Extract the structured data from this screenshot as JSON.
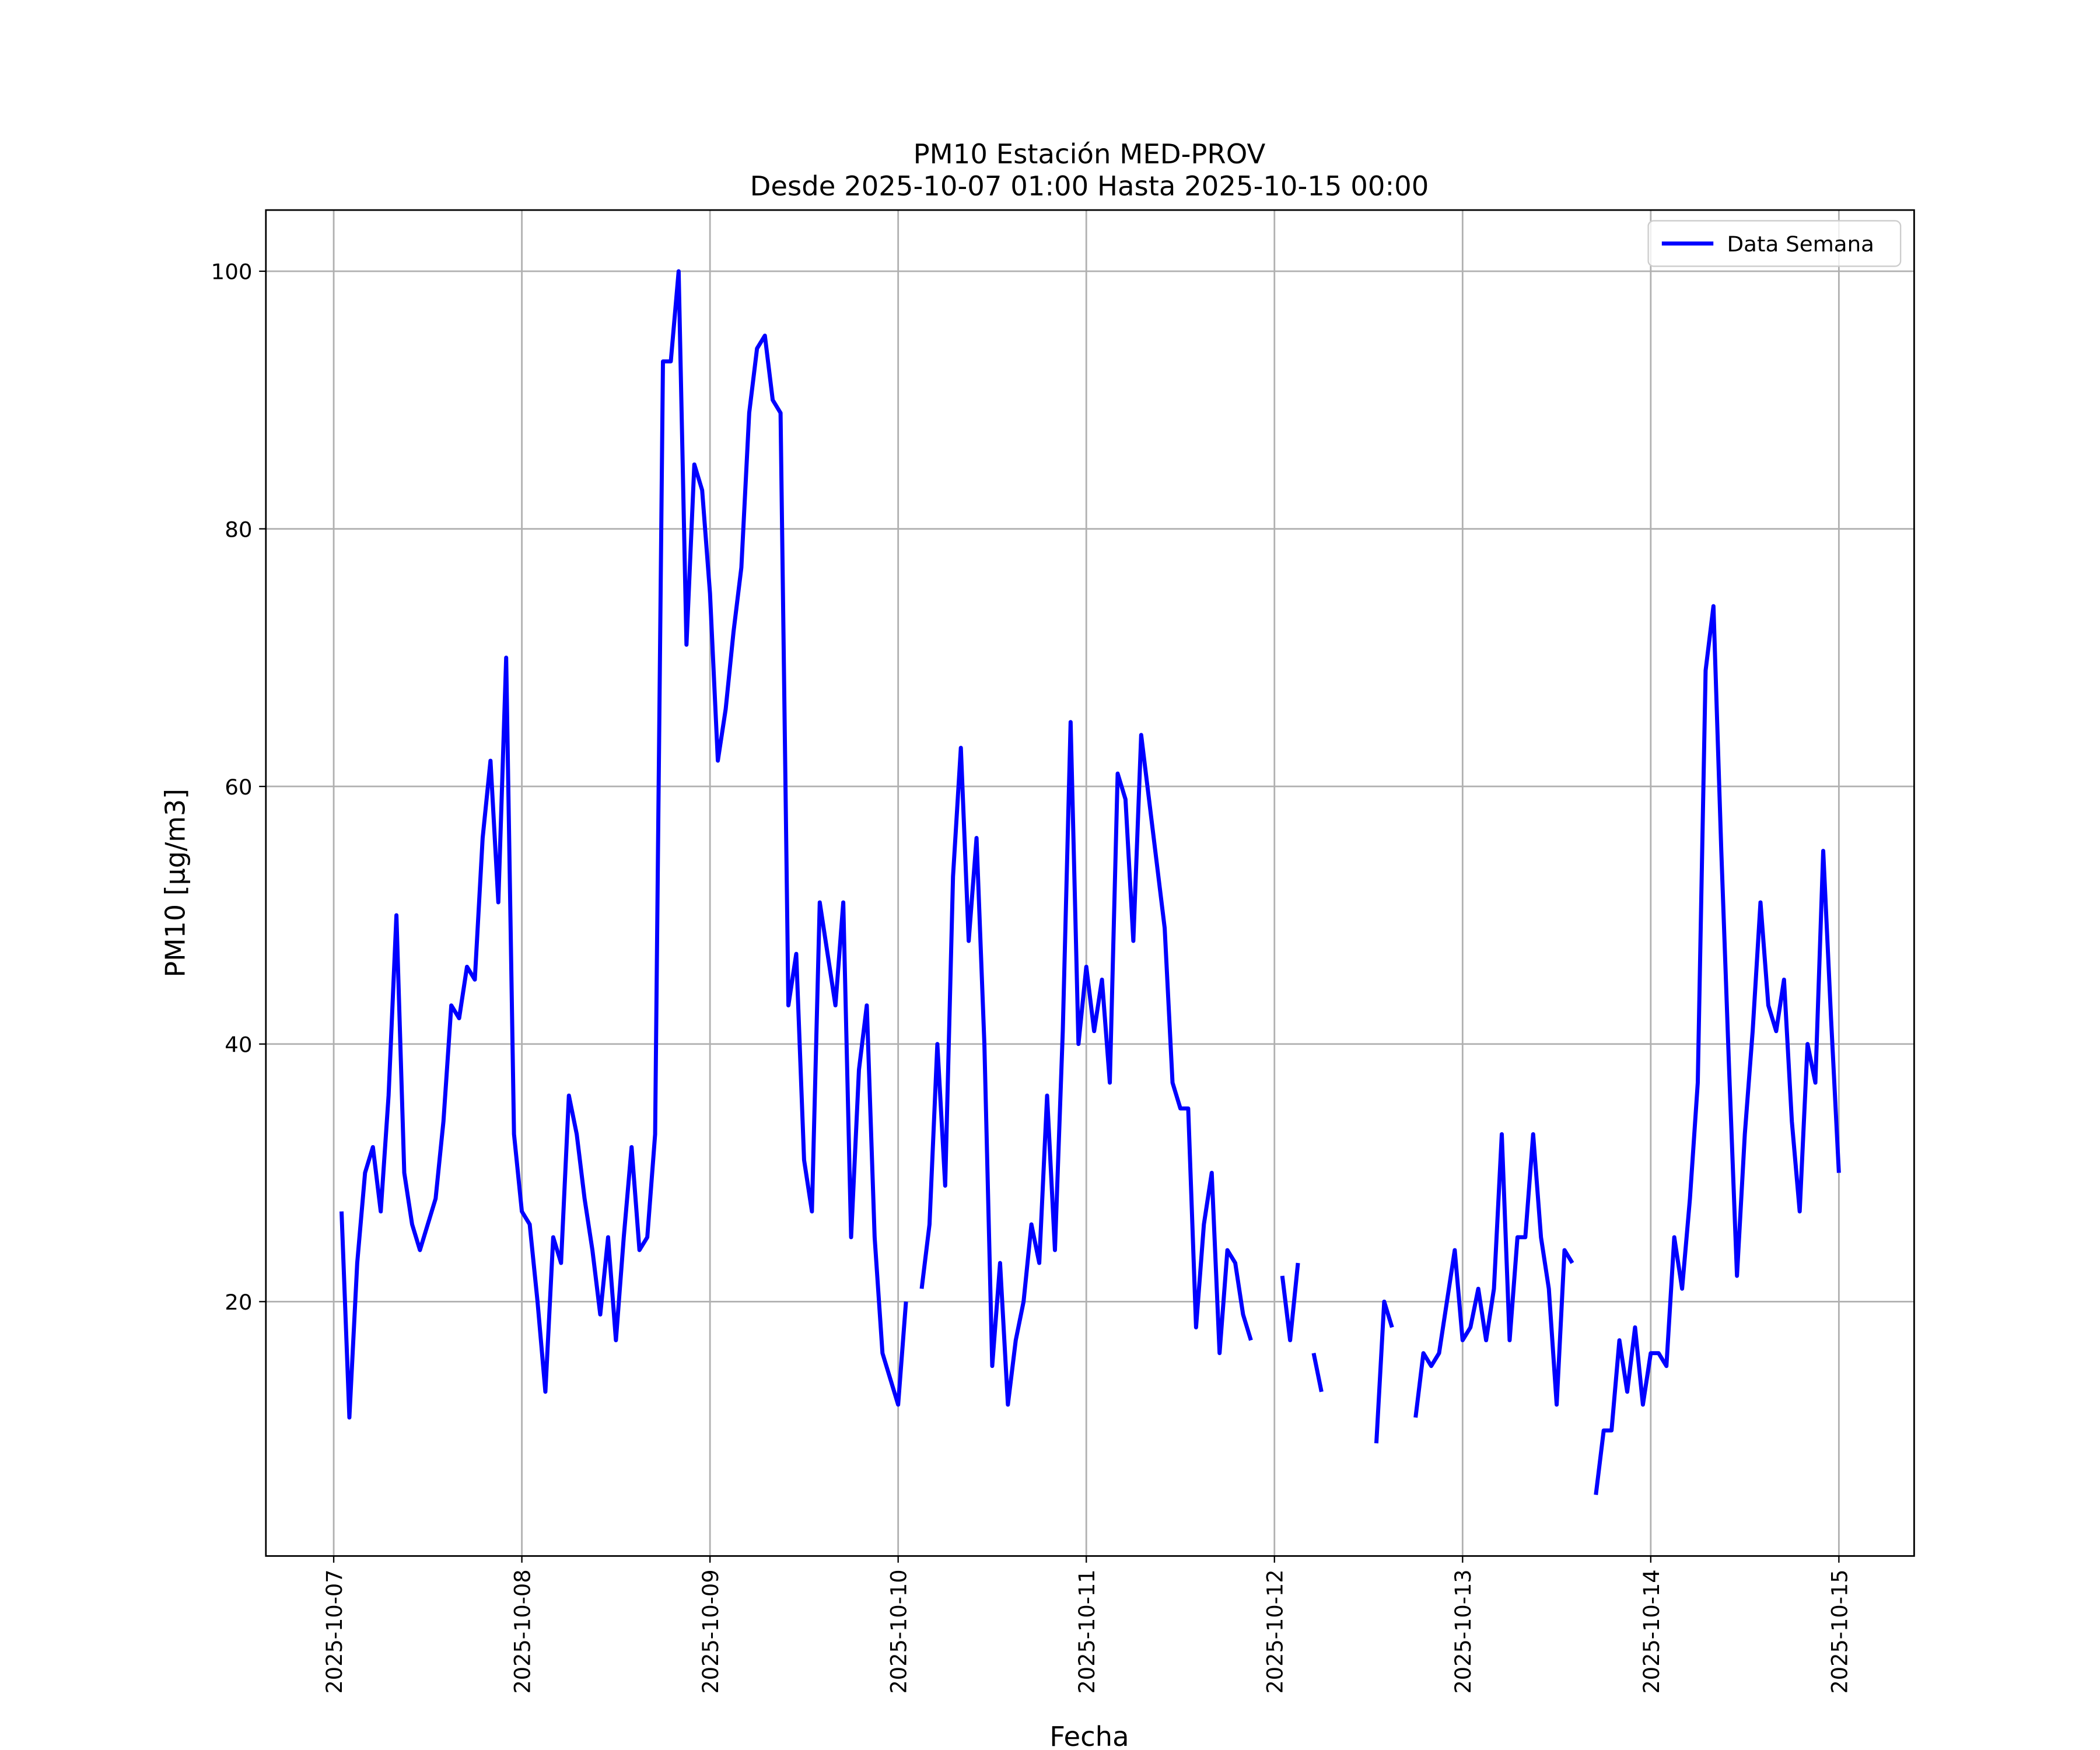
{
  "chart_data": {
    "type": "line",
    "title": "PM10 Estación MED-PROV",
    "subtitle": "Desde 2025-10-07 01:00 Hasta 2025-10-15 00:00",
    "x_label": "Fecha",
    "y_label": "PM10 [μg/m3]",
    "grid": true,
    "legend": "upper right",
    "xlim": [
      "2025-10-06 15:21",
      "2025-10-15 09:36"
    ],
    "ylim": [
      0.25,
      104.75
    ],
    "yticks": [
      20,
      40,
      60,
      80,
      100
    ],
    "xticks": [
      "2025-10-07",
      "2025-10-08",
      "2025-10-09",
      "2025-10-10",
      "2025-10-11",
      "2025-10-12",
      "2025-10-13",
      "2025-10-14",
      "2025-10-15"
    ],
    "x": [
      "2025-10-07 01:00",
      "2025-10-07 02:00",
      "2025-10-07 03:00",
      "2025-10-07 04:00",
      "2025-10-07 05:00",
      "2025-10-07 06:00",
      "2025-10-07 07:00",
      "2025-10-07 08:00",
      "2025-10-07 09:00",
      "2025-10-07 10:00",
      "2025-10-07 11:00",
      "2025-10-07 12:00",
      "2025-10-07 13:00",
      "2025-10-07 14:00",
      "2025-10-07 15:00",
      "2025-10-07 16:00",
      "2025-10-07 17:00",
      "2025-10-07 18:00",
      "2025-10-07 19:00",
      "2025-10-07 20:00",
      "2025-10-07 21:00",
      "2025-10-07 22:00",
      "2025-10-07 23:00",
      "2025-10-08 00:00",
      "2025-10-08 01:00",
      "2025-10-08 02:00",
      "2025-10-08 03:00",
      "2025-10-08 04:00",
      "2025-10-08 05:00",
      "2025-10-08 06:00",
      "2025-10-08 07:00",
      "2025-10-08 08:00",
      "2025-10-08 09:00",
      "2025-10-08 10:00",
      "2025-10-08 11:00",
      "2025-10-08 12:00",
      "2025-10-08 13:00",
      "2025-10-08 14:00",
      "2025-10-08 15:00",
      "2025-10-08 16:00",
      "2025-10-08 17:00",
      "2025-10-08 18:00",
      "2025-10-08 19:00",
      "2025-10-08 20:00",
      "2025-10-08 21:00",
      "2025-10-08 22:00",
      "2025-10-08 23:00",
      "2025-10-09 00:00",
      "2025-10-09 01:00",
      "2025-10-09 02:00",
      "2025-10-09 03:00",
      "2025-10-09 04:00",
      "2025-10-09 05:00",
      "2025-10-09 06:00",
      "2025-10-09 07:00",
      "2025-10-09 08:00",
      "2025-10-09 09:00",
      "2025-10-09 10:00",
      "2025-10-09 11:00",
      "2025-10-09 12:00",
      "2025-10-09 13:00",
      "2025-10-09 14:00",
      "2025-10-09 15:00",
      "2025-10-09 16:00",
      "2025-10-09 17:00",
      "2025-10-09 18:00",
      "2025-10-09 19:00",
      "2025-10-09 20:00",
      "2025-10-09 21:00",
      "2025-10-09 22:00",
      "2025-10-09 23:00",
      "2025-10-10 00:00",
      "2025-10-10 01:00",
      "2025-10-10 02:00",
      "2025-10-10 03:00",
      "2025-10-10 04:00",
      "2025-10-10 05:00",
      "2025-10-10 06:00",
      "2025-10-10 07:00",
      "2025-10-10 08:00",
      "2025-10-10 09:00",
      "2025-10-10 10:00",
      "2025-10-10 11:00",
      "2025-10-10 12:00",
      "2025-10-10 13:00",
      "2025-10-10 14:00",
      "2025-10-10 15:00",
      "2025-10-10 16:00",
      "2025-10-10 17:00",
      "2025-10-10 18:00",
      "2025-10-10 19:00",
      "2025-10-10 20:00",
      "2025-10-10 21:00",
      "2025-10-10 22:00",
      "2025-10-10 23:00",
      "2025-10-11 00:00",
      "2025-10-11 01:00",
      "2025-10-11 02:00",
      "2025-10-11 03:00",
      "2025-10-11 04:00",
      "2025-10-11 05:00",
      "2025-10-11 06:00",
      "2025-10-11 07:00",
      "2025-10-11 08:00",
      "2025-10-11 09:00",
      "2025-10-11 10:00",
      "2025-10-11 11:00",
      "2025-10-11 12:00",
      "2025-10-11 13:00",
      "2025-10-11 14:00",
      "2025-10-11 15:00",
      "2025-10-11 16:00",
      "2025-10-11 17:00",
      "2025-10-11 18:00",
      "2025-10-11 19:00",
      "2025-10-11 20:00",
      "2025-10-11 21:00",
      "2025-10-11 22:00",
      "2025-10-11 23:00",
      "2025-10-12 00:00",
      "2025-10-12 01:00",
      "2025-10-12 02:00",
      "2025-10-12 03:00",
      "2025-10-12 04:00",
      "2025-10-12 05:00",
      "2025-10-12 06:00",
      "2025-10-12 07:00",
      "2025-10-12 08:00",
      "2025-10-12 09:00",
      "2025-10-12 10:00",
      "2025-10-12 11:00",
      "2025-10-12 12:00",
      "2025-10-12 13:00",
      "2025-10-12 14:00",
      "2025-10-12 15:00",
      "2025-10-12 16:00",
      "2025-10-12 17:00",
      "2025-10-12 18:00",
      "2025-10-12 19:00",
      "2025-10-12 20:00",
      "2025-10-12 21:00",
      "2025-10-12 22:00",
      "2025-10-12 23:00",
      "2025-10-13 00:00",
      "2025-10-13 01:00",
      "2025-10-13 02:00",
      "2025-10-13 03:00",
      "2025-10-13 04:00",
      "2025-10-13 05:00",
      "2025-10-13 06:00",
      "2025-10-13 07:00",
      "2025-10-13 08:00",
      "2025-10-13 09:00",
      "2025-10-13 10:00",
      "2025-10-13 11:00",
      "2025-10-13 12:00",
      "2025-10-13 13:00",
      "2025-10-13 14:00",
      "2025-10-13 15:00",
      "2025-10-13 16:00",
      "2025-10-13 17:00",
      "2025-10-13 18:00",
      "2025-10-13 19:00",
      "2025-10-13 20:00",
      "2025-10-13 21:00",
      "2025-10-13 22:00",
      "2025-10-13 23:00",
      "2025-10-14 00:00",
      "2025-10-14 01:00",
      "2025-10-14 02:00",
      "2025-10-14 03:00",
      "2025-10-14 04:00",
      "2025-10-14 05:00",
      "2025-10-14 06:00",
      "2025-10-14 07:00",
      "2025-10-14 08:00",
      "2025-10-14 09:00",
      "2025-10-14 10:00",
      "2025-10-14 11:00",
      "2025-10-14 12:00",
      "2025-10-14 13:00",
      "2025-10-14 14:00",
      "2025-10-14 15:00",
      "2025-10-14 16:00",
      "2025-10-14 17:00",
      "2025-10-14 18:00",
      "2025-10-14 19:00",
      "2025-10-14 20:00",
      "2025-10-14 21:00",
      "2025-10-14 22:00",
      "2025-10-14 23:00",
      "2025-10-15 00:00"
    ],
    "series": [
      {
        "name": "Data Semana",
        "color": "#0000ff",
        "values": [
          27,
          11,
          23,
          30,
          32,
          27,
          36,
          50,
          30,
          26,
          24,
          26,
          28,
          34,
          43,
          42,
          46,
          45,
          56,
          62,
          51,
          70,
          33,
          27,
          26,
          20,
          13,
          25,
          23,
          36,
          33,
          28,
          24,
          19,
          25,
          17,
          25,
          32,
          24,
          25,
          33,
          93,
          93,
          100,
          71,
          85,
          83,
          75,
          62,
          66,
          72,
          77,
          89,
          94,
          95,
          90,
          89,
          43,
          47,
          31,
          27,
          51,
          47,
          43,
          51,
          25,
          38,
          43,
          25,
          16,
          14,
          12,
          20,
          null,
          21,
          26,
          40,
          29,
          53,
          63,
          48,
          56,
          40,
          15,
          23,
          12,
          17,
          20,
          26,
          23,
          36,
          24,
          41,
          65,
          40,
          46,
          41,
          45,
          37,
          61,
          59,
          48,
          64,
          59,
          54,
          49,
          37,
          35,
          35,
          18,
          26,
          30,
          16,
          24,
          23,
          19,
          17,
          null,
          null,
          null,
          22,
          17,
          23,
          null,
          16,
          13,
          null,
          null,
          null,
          null,
          null,
          null,
          9,
          20,
          18,
          null,
          null,
          11,
          16,
          15,
          16,
          20,
          24,
          17,
          18,
          21,
          17,
          21,
          33,
          17,
          25,
          25,
          33,
          25,
          21,
          12,
          24,
          23,
          null,
          null,
          5,
          10,
          10,
          17,
          13,
          18,
          12,
          16,
          16,
          15,
          25,
          21,
          28,
          37,
          69,
          74,
          55,
          38,
          22,
          33,
          41,
          51,
          43,
          41,
          45,
          34,
          27,
          40,
          37,
          55,
          42,
          30
        ]
      }
    ]
  }
}
